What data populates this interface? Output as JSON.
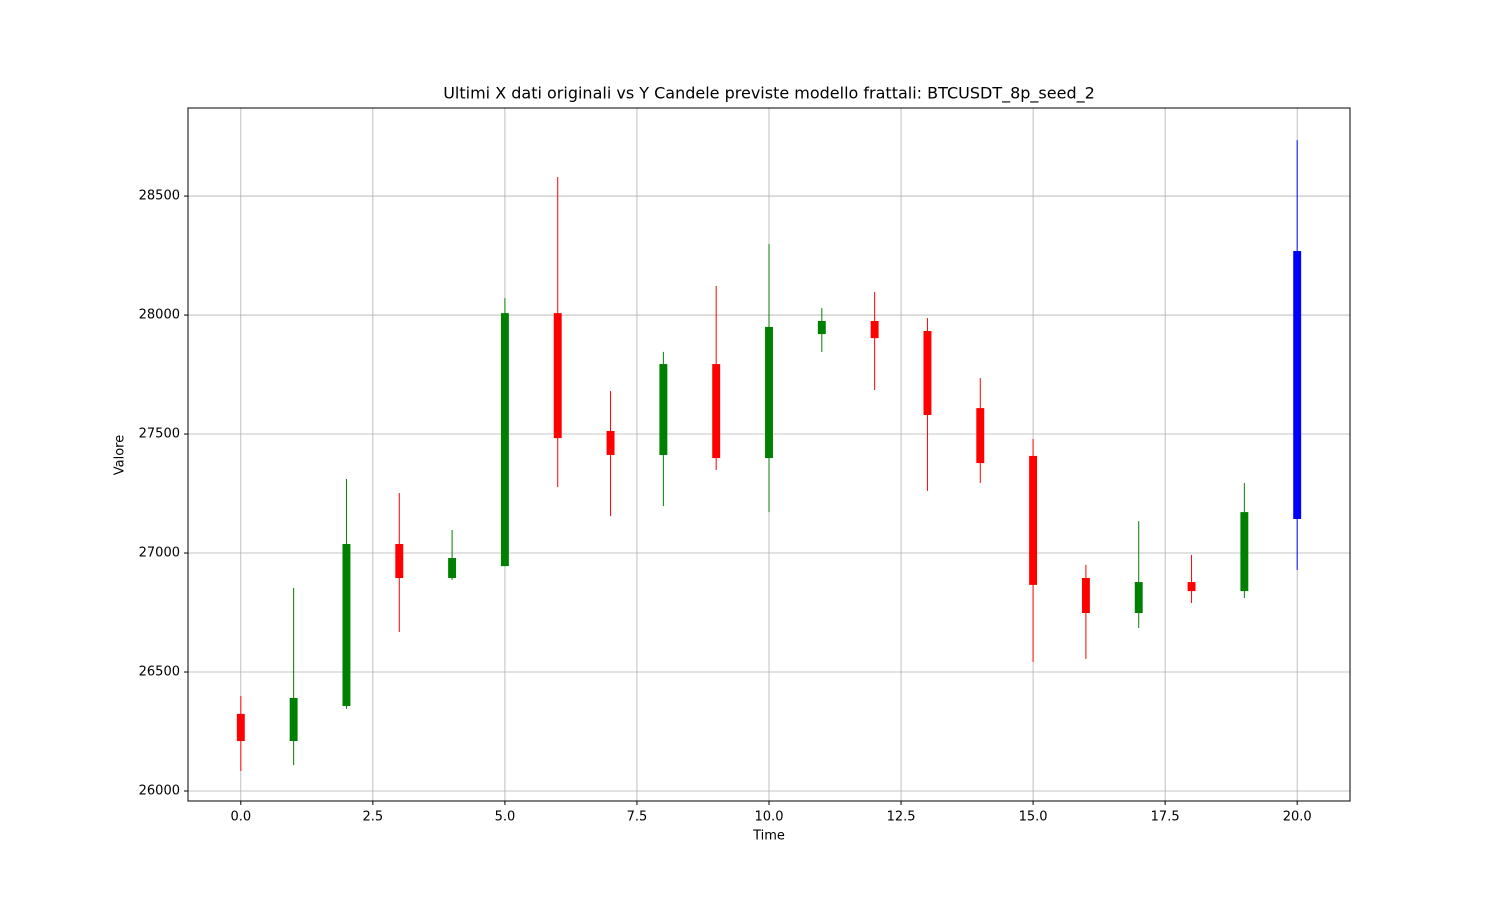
{
  "chart_data": {
    "type": "candlestick",
    "title": "Ultimi X dati originali vs Y Candele previste modello frattali: BTCUSDT_8p_seed_2",
    "x_label": "Time",
    "y_label": "Valore",
    "x": [
      0,
      1,
      2,
      3,
      4,
      5,
      6,
      7,
      8,
      9,
      10,
      11,
      12,
      13,
      14,
      15,
      16,
      17,
      18,
      19,
      20
    ],
    "open": [
      26324,
      26210,
      26357,
      27038,
      26895,
      26945,
      28008,
      27513,
      27412,
      27794,
      27399,
      27920,
      27975,
      27933,
      27609,
      27408,
      26895,
      26748,
      26878,
      26840,
      27143
    ],
    "high": [
      26399,
      26853,
      27311,
      27252,
      27097,
      28071,
      28580,
      27681,
      27845,
      28122,
      28298,
      28029,
      28097,
      27987,
      27735,
      27479,
      26950,
      27134,
      26992,
      27294,
      28735
    ],
    "low": [
      26084,
      26109,
      26345,
      26668,
      26887,
      26945,
      27277,
      27155,
      27197,
      27349,
      27172,
      27845,
      27685,
      27261,
      27294,
      26542,
      26555,
      26685,
      26790,
      26811,
      26929
    ],
    "close": [
      26210,
      26391,
      27038,
      26895,
      26979,
      28008,
      27483,
      27412,
      27794,
      27399,
      27950,
      27975,
      27903,
      27580,
      27378,
      26866,
      26748,
      26878,
      26840,
      27172,
      28269
    ],
    "colors": [
      "red",
      "green",
      "green",
      "red",
      "green",
      "green",
      "red",
      "red",
      "green",
      "red",
      "green",
      "green",
      "red",
      "red",
      "red",
      "red",
      "red",
      "green",
      "red",
      "green",
      "blue"
    ],
    "xlim": [
      -1,
      21
    ],
    "ylim": [
      25958,
      28870
    ],
    "xticks": [
      {
        "value": 0,
        "label": "0.0"
      },
      {
        "value": 2.5,
        "label": "2.5"
      },
      {
        "value": 5,
        "label": "5.0"
      },
      {
        "value": 7.5,
        "label": "7.5"
      },
      {
        "value": 10,
        "label": "10.0"
      },
      {
        "value": 12.5,
        "label": "12.5"
      },
      {
        "value": 15,
        "label": "15.0"
      },
      {
        "value": 17.5,
        "label": "17.5"
      },
      {
        "value": 20,
        "label": "20.0"
      }
    ],
    "yticks": [
      26000,
      26500,
      27000,
      27500,
      28000,
      28500
    ],
    "grid": true
  }
}
